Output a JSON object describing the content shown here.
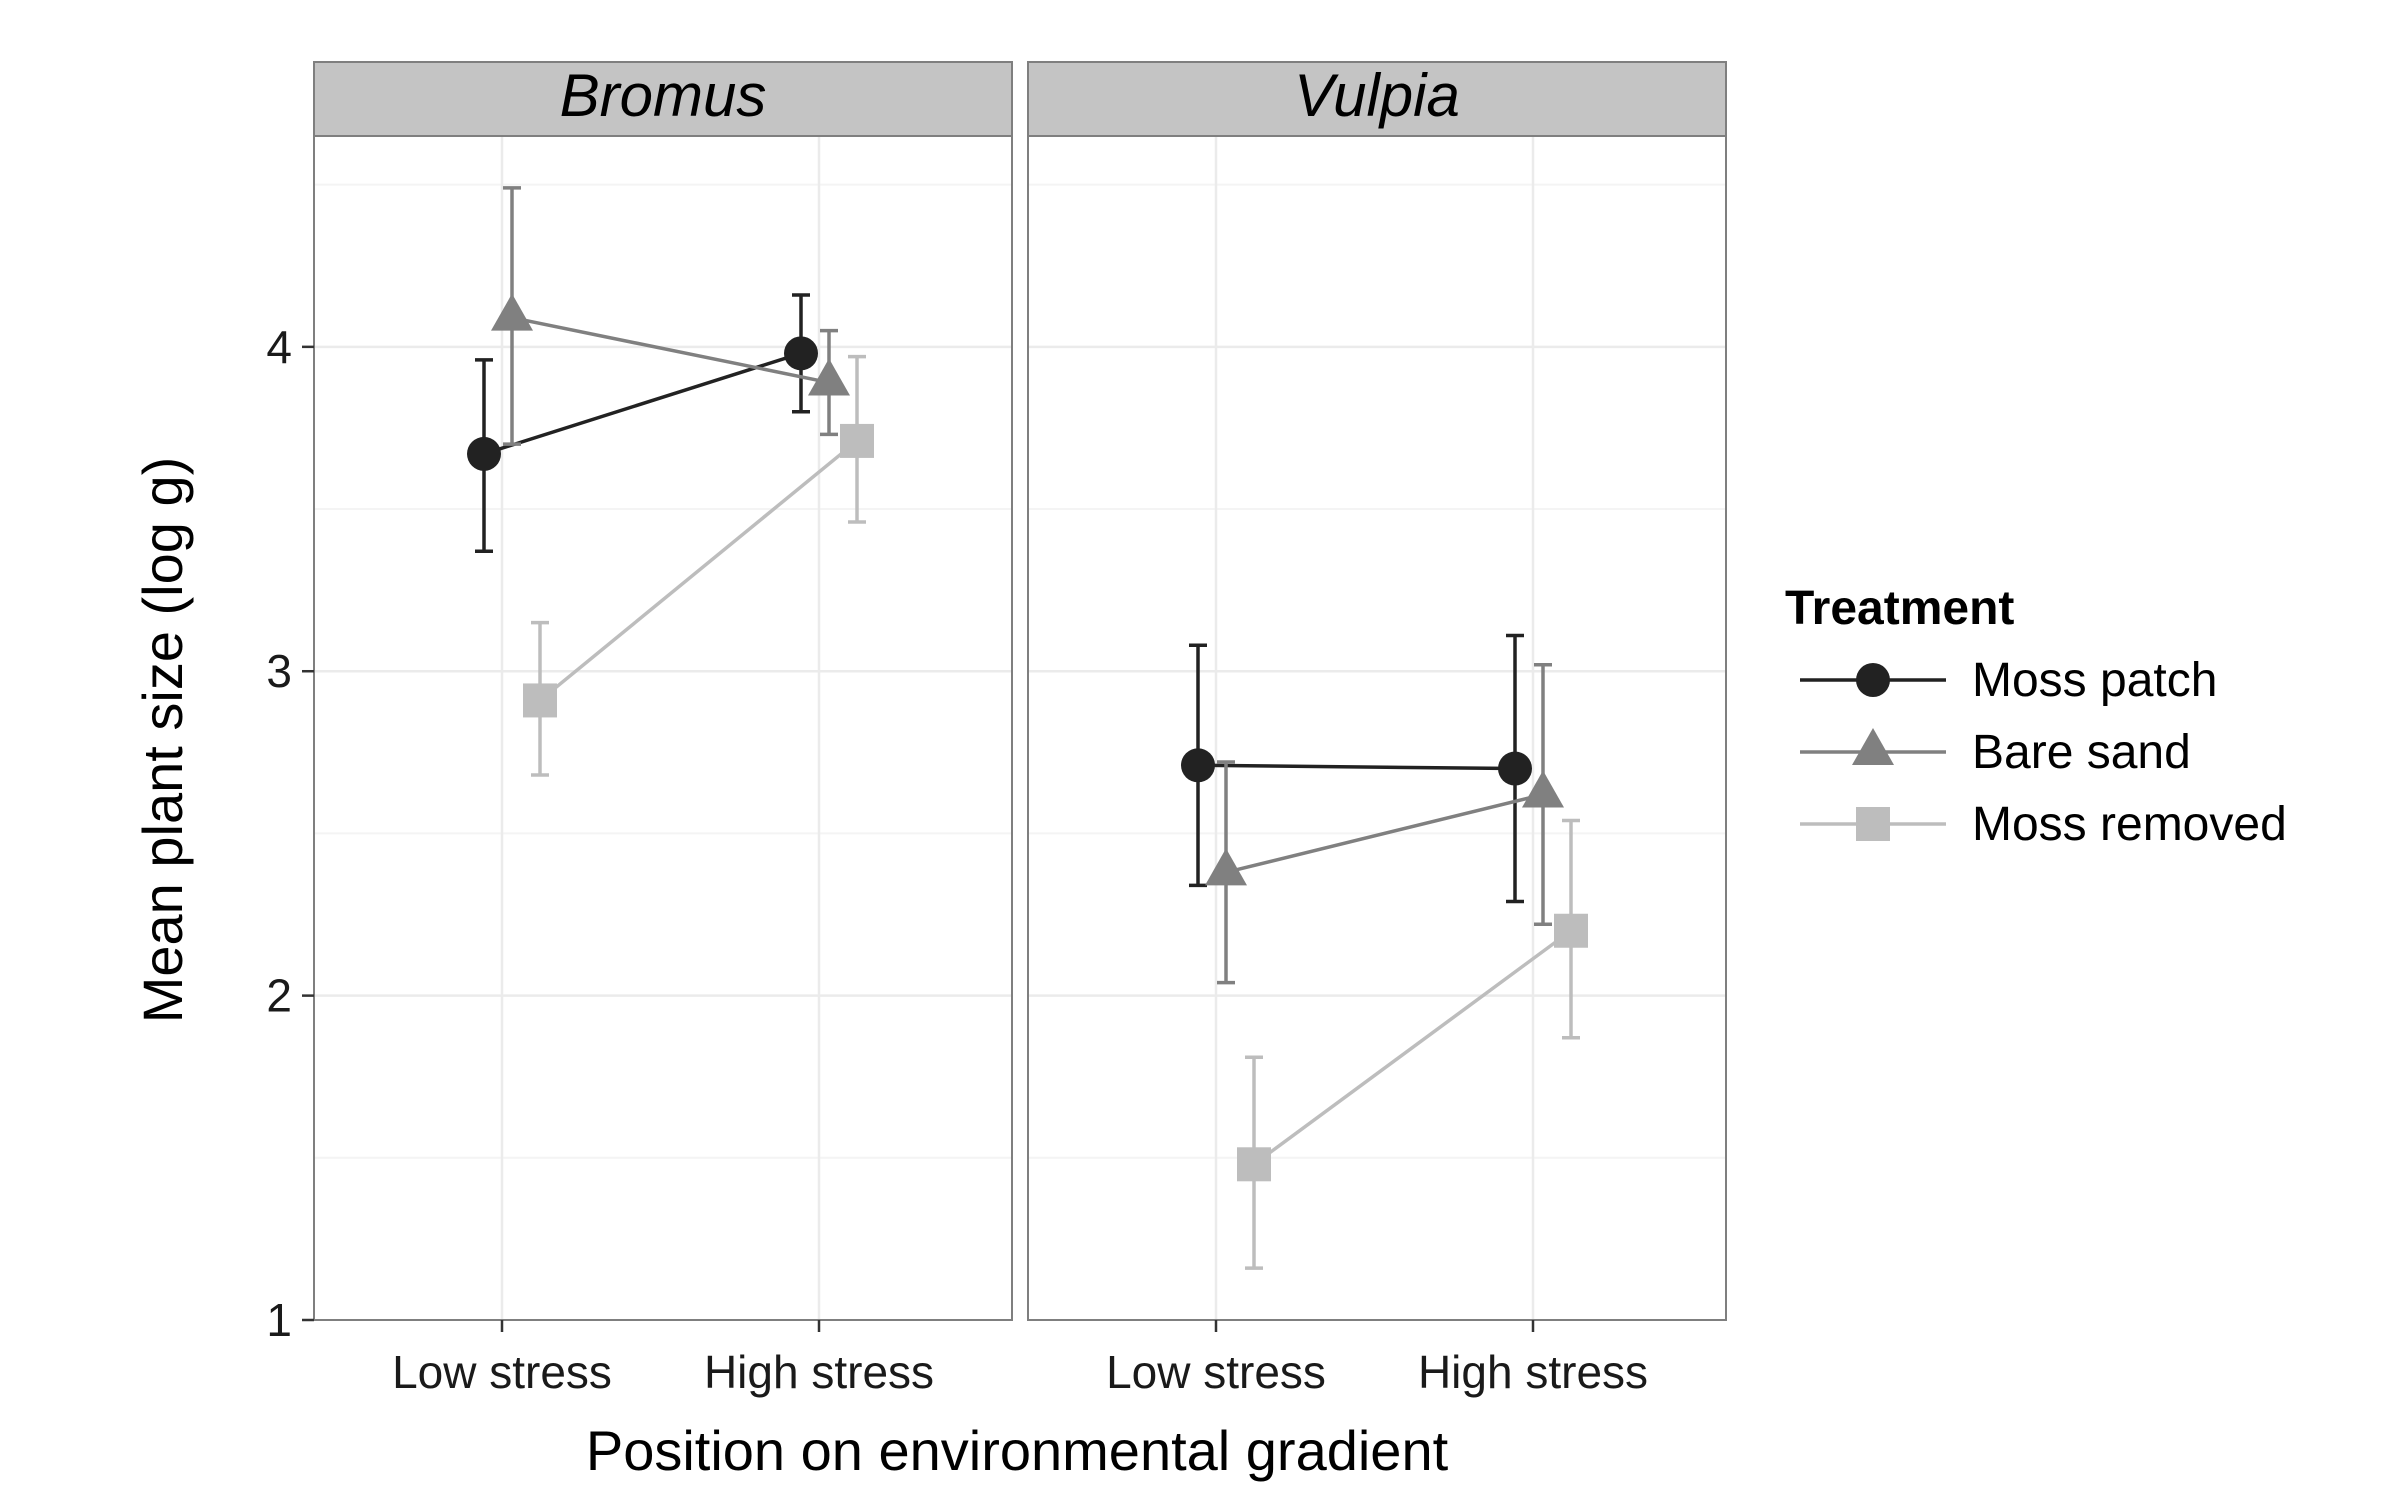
{
  "chart_data": {
    "type": "line",
    "facets": [
      "Bromus",
      "Vulpia"
    ],
    "categories": [
      "Low stress",
      "High stress"
    ],
    "xlabel": "Position on environmental gradient",
    "ylabel": "Mean plant size (log g)",
    "ylim": [
      1,
      4.65
    ],
    "yticks": [
      1,
      2,
      3,
      4
    ],
    "grid": true,
    "legend": {
      "title": "Treatment",
      "position": "right"
    },
    "series": [
      {
        "name": "Moss patch",
        "marker": "circle",
        "color": "#222222",
        "values": {
          "Bromus": [
            3.67,
            3.98
          ],
          "Vulpia": [
            2.71,
            2.7
          ]
        },
        "errors": {
          "Bromus": [
            [
              3.37,
              3.96
            ],
            [
              3.8,
              4.16
            ]
          ],
          "Vulpia": [
            [
              2.34,
              3.08
            ],
            [
              2.29,
              3.11
            ]
          ]
        }
      },
      {
        "name": "Bare sand",
        "marker": "triangle",
        "color": "#808080",
        "values": {
          "Bromus": [
            4.09,
            3.89
          ],
          "Vulpia": [
            2.38,
            2.62
          ]
        },
        "errors": {
          "Bromus": [
            [
              3.7,
              4.49
            ],
            [
              3.73,
              4.05
            ]
          ],
          "Vulpia": [
            [
              2.04,
              2.72
            ],
            [
              2.22,
              3.02
            ]
          ]
        }
      },
      {
        "name": "Moss removed",
        "marker": "square",
        "color": "#bdbdbd",
        "values": {
          "Bromus": [
            2.91,
            3.71
          ],
          "Vulpia": [
            1.48,
            2.2
          ]
        },
        "errors": {
          "Bromus": [
            [
              2.68,
              3.15
            ],
            [
              3.46,
              3.97
            ]
          ],
          "Vulpia": [
            [
              1.16,
              1.81
            ],
            [
              1.87,
              2.54
            ]
          ]
        }
      }
    ]
  }
}
